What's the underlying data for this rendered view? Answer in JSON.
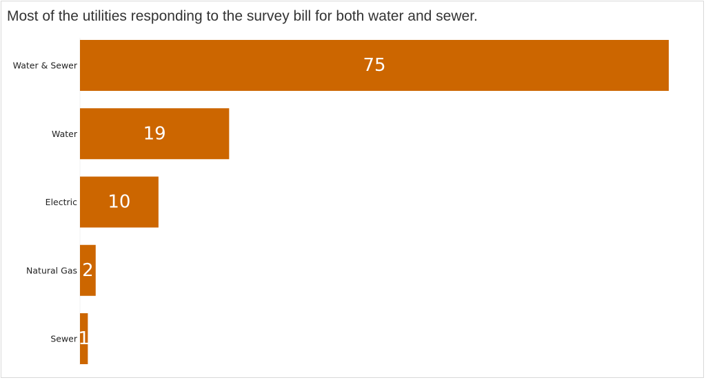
{
  "title": "Most of the utilities responding to the survey bill for both water and sewer.",
  "colors": {
    "bar": "#cc6600",
    "label": "#ffffff",
    "axis_text": "#222222"
  },
  "chart_data": {
    "type": "bar",
    "orientation": "horizontal",
    "title": "Most of the utilities responding to the survey bill for both water and sewer.",
    "xlabel": "",
    "ylabel": "",
    "categories": [
      "Water & Sewer",
      "Water",
      "Electric",
      "Natural Gas",
      "Sewer"
    ],
    "values": [
      75,
      19,
      10,
      2,
      1
    ],
    "xlim": [
      0,
      75
    ],
    "grid": false,
    "data_labels": true
  }
}
